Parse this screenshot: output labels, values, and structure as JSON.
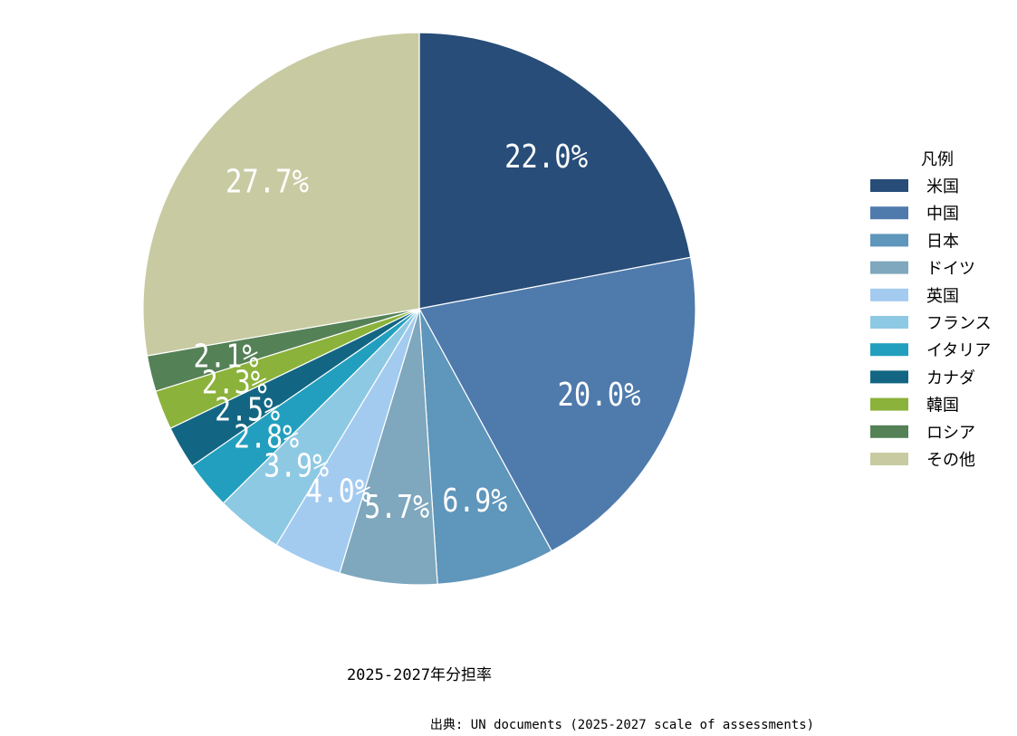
{
  "chart_data": {
    "type": "pie",
    "title": "2025-2027年分担率",
    "source": "出典: UN documents (2025-2027 scale of assessments)",
    "legend_title": "凡例",
    "legend_position": "right",
    "start": "top, clockwise",
    "slices": [
      {
        "label": "米国",
        "value": 22.0,
        "text": "22.0%",
        "color": "#274d78"
      },
      {
        "label": "中国",
        "value": 20.0,
        "text": "20.0%",
        "color": "#4f7aac"
      },
      {
        "label": "日本",
        "value": 6.9,
        "text": "6.9%",
        "color": "#5f96bb"
      },
      {
        "label": "ドイツ",
        "value": 5.7,
        "text": "5.7%",
        "color": "#7fa7bd"
      },
      {
        "label": "英国",
        "value": 4.0,
        "text": "4.0%",
        "color": "#a3cbf0"
      },
      {
        "label": "フランス",
        "value": 3.9,
        "text": "3.9%",
        "color": "#8ec9e4"
      },
      {
        "label": "イタリア",
        "value": 2.8,
        "text": "2.8%",
        "color": "#229fbe"
      },
      {
        "label": "カナダ",
        "value": 2.5,
        "text": "2.5%",
        "color": "#136683"
      },
      {
        "label": "韓国",
        "value": 2.3,
        "text": "2.3%",
        "color": "#8bb23a"
      },
      {
        "label": "ロシア",
        "value": 2.1,
        "text": "2.1%",
        "color": "#558157"
      },
      {
        "label": "その他",
        "value": 27.7,
        "text": "27.7%",
        "color": "#c8cba2"
      }
    ]
  }
}
